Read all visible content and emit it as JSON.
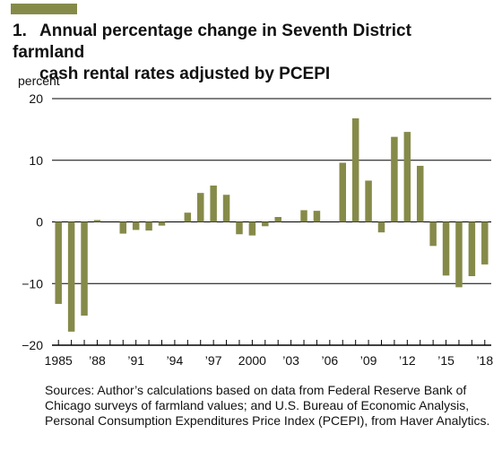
{
  "title": {
    "number": "1.",
    "line1": "Annual percentage change in Seventh District farmland",
    "line2": "cash rental rates adjusted by PCEPI"
  },
  "source_note": "Sources: Author’s calculations based on data from Federal Reserve Bank of Chicago surveys of farmland values; and U.S. Bureau of Economic Analysis, Personal Consumption Expenditures Price Index (PCEPI), from Haver Analytics.",
  "colors": {
    "bar": "#868a49",
    "accent": "#868a49",
    "gridline": "#000000"
  },
  "chart_data": {
    "type": "bar",
    "ylabel": "percent",
    "ylim": [
      -20,
      20
    ],
    "yticks": [
      "20",
      "10",
      "0",
      "−10",
      "−20"
    ],
    "ytick_values": [
      20,
      10,
      0,
      -10,
      -20
    ],
    "xtick_labels": [
      {
        "year": 1985,
        "label": "1985"
      },
      {
        "year": 1988,
        "label": "’88"
      },
      {
        "year": 1991,
        "label": "’91"
      },
      {
        "year": 1994,
        "label": "’94"
      },
      {
        "year": 1997,
        "label": "’97"
      },
      {
        "year": 2000,
        "label": "2000"
      },
      {
        "year": 2003,
        "label": "’03"
      },
      {
        "year": 2006,
        "label": "’06"
      },
      {
        "year": 2009,
        "label": "’09"
      },
      {
        "year": 2012,
        "label": "’12"
      },
      {
        "year": 2015,
        "label": "’15"
      },
      {
        "year": 2018,
        "label": "’18"
      }
    ],
    "categories": [
      1985,
      1986,
      1987,
      1988,
      1989,
      1990,
      1991,
      1992,
      1993,
      1994,
      1995,
      1996,
      1997,
      1998,
      1999,
      2000,
      2001,
      2002,
      2003,
      2004,
      2005,
      2006,
      2007,
      2008,
      2009,
      2010,
      2011,
      2012,
      2013,
      2014,
      2015,
      2016,
      2017,
      2018
    ],
    "values": [
      -13.3,
      -17.8,
      -15.2,
      0.3,
      0,
      -1.9,
      -1.3,
      -1.4,
      -0.6,
      0,
      1.5,
      4.7,
      5.9,
      4.4,
      -2.0,
      -2.2,
      -0.7,
      0.8,
      0,
      1.9,
      1.8,
      0,
      9.6,
      16.8,
      6.7,
      -1.7,
      13.8,
      14.6,
      9.1,
      -3.9,
      -8.7,
      -10.6,
      -8.8,
      -6.9
    ]
  }
}
